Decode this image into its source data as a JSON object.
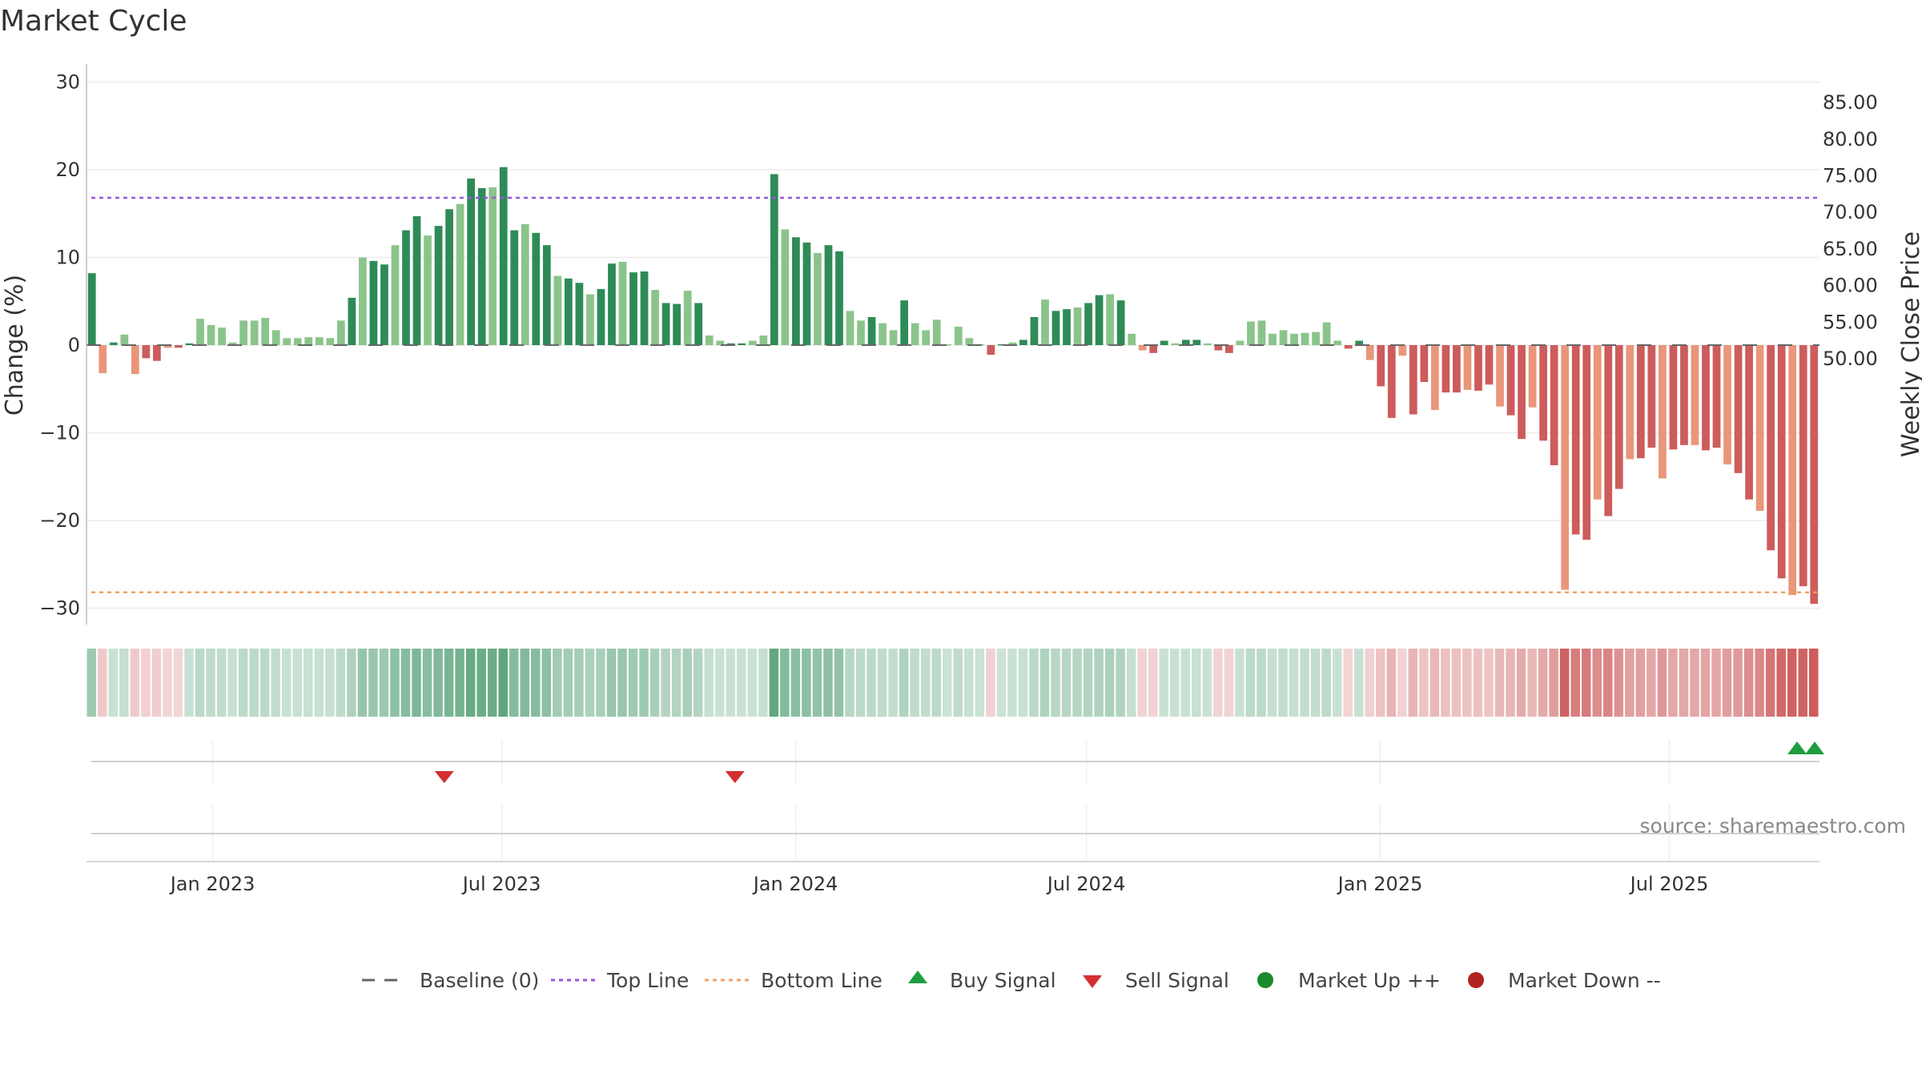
{
  "chart_data": {
    "type": "bar",
    "title": "Market Cycle",
    "ylabel": "Change (%)",
    "y2label": "Weekly Close Price",
    "ylim": [
      -32,
      32
    ],
    "y2lim": [
      46.5,
      86.0
    ],
    "yticks": [
      30,
      20,
      10,
      0,
      -10,
      -20,
      -30
    ],
    "ytick_labels": [
      "30",
      "20",
      "10",
      "0",
      "−10",
      "−20",
      "−30"
    ],
    "y2ticks": [
      85,
      80,
      75,
      70,
      65,
      60,
      55,
      50
    ],
    "y2tick_labels": [
      "85.00",
      "80.00",
      "75.00",
      "70.00",
      "65.00",
      "60.00",
      "55.00",
      "50.00"
    ],
    "x_start": "2022-10-14",
    "x_end": "2025-10-03",
    "xticks": [
      "2023-01-01",
      "2023-07-01",
      "2024-01-01",
      "2024-07-01",
      "2025-01-01",
      "2025-07-01"
    ],
    "xtick_labels": [
      "Jan 2023",
      "Jul 2023",
      "Jan 2024",
      "Jul 2024",
      "Jan 2025",
      "Jul 2025"
    ],
    "top_line": 16.8,
    "bottom_line": -28.2,
    "baseline": 0,
    "values": [
      8.2,
      -3.2,
      0.3,
      1.2,
      -3.3,
      -1.5,
      -1.8,
      -0.3,
      -0.3,
      0.2,
      3.0,
      2.3,
      2.0,
      0.3,
      2.8,
      2.8,
      3.1,
      1.7,
      0.8,
      0.8,
      0.9,
      0.9,
      0.8,
      2.8,
      5.4,
      10.0,
      9.6,
      9.2,
      11.4,
      13.1,
      14.7,
      12.5,
      13.6,
      15.5,
      16.1,
      19.0,
      17.9,
      18.0,
      20.3,
      13.1,
      13.8,
      12.8,
      11.4,
      7.9,
      7.6,
      7.1,
      5.8,
      6.4,
      9.3,
      9.5,
      8.3,
      8.4,
      6.3,
      4.8,
      4.7,
      6.2,
      4.8,
      1.1,
      0.5,
      0.2,
      0.2,
      0.5,
      1.1,
      19.5,
      13.2,
      12.3,
      11.7,
      10.5,
      11.4,
      10.7,
      3.9,
      2.8,
      3.2,
      2.5,
      1.7,
      5.1,
      2.5,
      1.7,
      2.9,
      0.1,
      2.1,
      0.8,
      0.1,
      -1.1,
      0.1,
      0.3,
      0.6,
      3.2,
      5.2,
      3.9,
      4.1,
      4.3,
      4.8,
      5.7,
      5.8,
      5.1,
      1.3,
      -0.6,
      -0.9,
      0.5,
      0.2,
      0.6,
      0.6,
      0.2,
      -0.6,
      -0.9,
      0.5,
      2.7,
      2.8,
      1.3,
      1.7,
      1.3,
      1.4,
      1.5,
      2.6,
      0.5,
      -0.4,
      0.5,
      -1.7,
      -4.7,
      -8.3,
      -1.2,
      -7.9,
      -4.2,
      -7.4,
      -5.4,
      -5.4,
      -5.1,
      -5.2,
      -4.5,
      -7.0,
      -8.0,
      -10.7,
      -7.1,
      -10.9,
      -13.7,
      -27.9,
      -21.6,
      -22.2,
      -17.6,
      -19.5,
      -16.4,
      -13.0,
      -12.9,
      -11.7,
      -15.2,
      -11.9,
      -11.4,
      -11.4,
      -12.0,
      -11.7,
      -13.6,
      -14.6,
      -17.6,
      -18.9,
      -23.4,
      -26.6,
      -28.5,
      -27.5,
      -29.5
    ],
    "colors": {
      "up_strong": "#2e8b57",
      "up_weak": "#8bc48a",
      "down_strong": "#cd5c5c",
      "down_weak": "#e9967a",
      "top_line": "#9955dd",
      "bottom_line": "#f0a060",
      "buy": "#1e9e3e",
      "sell": "#d32f2f",
      "market_up": "#1a8a2a",
      "market_down": "#b22222"
    },
    "buy_signals": [
      "2025-09-19",
      "2025-10-03"
    ],
    "sell_signals": [
      "2023-05-26",
      "2023-11-24"
    ],
    "legend_position": "bottom-center",
    "grid": true
  },
  "legend": {
    "baseline": "Baseline (0)",
    "top_line": "Top Line",
    "bottom_line": "Bottom Line",
    "buy": "Buy Signal",
    "sell": "Sell Signal",
    "market_up": "Market Up ++",
    "market_down": "Market Down --"
  },
  "source": "source: sharemaestro.com"
}
